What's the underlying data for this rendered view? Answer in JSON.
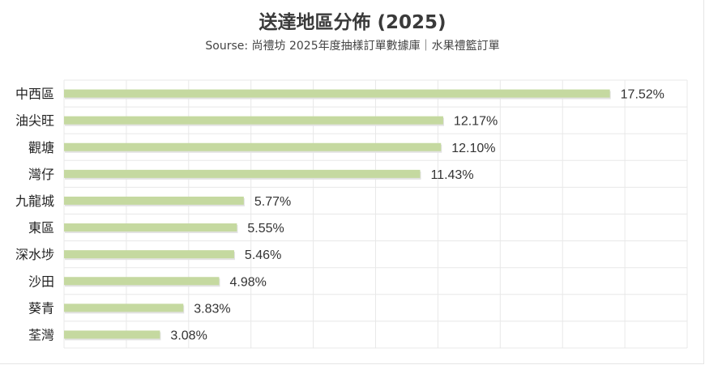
{
  "chart_data": {
    "type": "bar",
    "orientation": "horizontal",
    "title": "送達地區分佈 (2025)",
    "subtitle": "Sourse: 尚禮坊 2025年度抽樣訂單數據庫｜水果禮籃訂單",
    "xlabel": "",
    "ylabel": "",
    "categories": [
      "中西區",
      "油尖旺",
      "觀塘",
      "灣仔",
      "九龍城",
      "東區",
      "深水埗",
      "沙田",
      "葵青",
      "荃灣"
    ],
    "values": [
      17.52,
      12.17,
      12.1,
      11.43,
      5.77,
      5.55,
      5.46,
      4.98,
      3.83,
      3.08
    ],
    "value_labels": [
      "17.52%",
      "12.17%",
      "12.10%",
      "11.43%",
      "5.77%",
      "5.55%",
      "5.46%",
      "4.98%",
      "3.83%",
      "3.08%"
    ],
    "xlim": [
      0,
      20
    ],
    "grid": true,
    "legend": "none",
    "colors": {
      "bar": "#c5d9a0",
      "grid": "#e8e8e8",
      "text": "#333333"
    }
  }
}
